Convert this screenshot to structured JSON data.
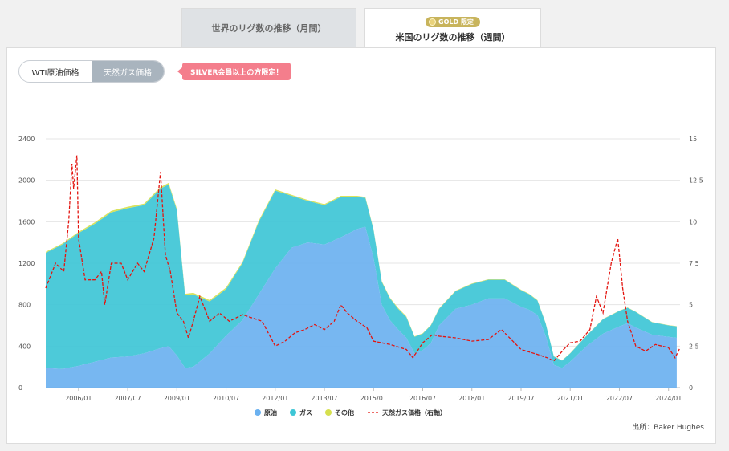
{
  "tabs": {
    "monthly": "世界のリグ数の推移（月間）",
    "weekly": "米国のリグ数の推移（週間）",
    "gold_badge": "GOLD 限定"
  },
  "toggle": {
    "wti": "WTI原油価格",
    "gas": "天然ガス価格"
  },
  "silver_note": "SILVER会員以上の方限定！",
  "source": "出所：Baker Hughes",
  "chart_data": {
    "type": "area",
    "x": [
      2005.0,
      2005.5,
      2006.0,
      2006.5,
      2007.0,
      2007.5,
      2008.0,
      2008.5,
      2008.75,
      2009.0,
      2009.25,
      2009.5,
      2010.0,
      2010.5,
      2011.0,
      2011.5,
      2012.0,
      2012.5,
      2013.0,
      2013.5,
      2014.0,
      2014.5,
      2014.75,
      2015.0,
      2015.25,
      2015.5,
      2015.75,
      2016.0,
      2016.25,
      2016.5,
      2016.75,
      2017.0,
      2017.5,
      2018.0,
      2018.5,
      2019.0,
      2019.5,
      2019.75,
      2020.0,
      2020.25,
      2020.5,
      2020.75,
      2021.0,
      2021.5,
      2022.0,
      2022.5,
      2022.75,
      2023.0,
      2023.5,
      2024.0,
      2024.25
    ],
    "series": [
      {
        "name": "原油",
        "color": "#6bb1f0",
        "values": [
          190,
          180,
          210,
          250,
          290,
          300,
          330,
          380,
          400,
          310,
          190,
          200,
          330,
          500,
          650,
          900,
          1150,
          1350,
          1400,
          1380,
          1450,
          1530,
          1550,
          1250,
          800,
          650,
          560,
          480,
          330,
          360,
          430,
          600,
          760,
          800,
          860,
          860,
          780,
          750,
          700,
          500,
          220,
          190,
          250,
          400,
          520,
          590,
          620,
          580,
          510,
          490,
          480
        ]
      },
      {
        "name": "ガス",
        "color": "#3ec6d6",
        "values": [
          1110,
          1200,
          1280,
          1330,
          1400,
          1430,
          1430,
          1540,
          1560,
          1400,
          700,
          700,
          500,
          450,
          550,
          700,
          750,
          500,
          400,
          380,
          390,
          310,
          280,
          270,
          220,
          210,
          200,
          200,
          160,
          160,
          170,
          160,
          170,
          200,
          180,
          180,
          160,
          150,
          140,
          120,
          80,
          70,
          80,
          100,
          140,
          150,
          150,
          150,
          120,
          110,
          110
        ]
      },
      {
        "name": "その他",
        "color": "#d6e04e",
        "values": [
          10,
          10,
          12,
          15,
          15,
          15,
          15,
          15,
          15,
          15,
          15,
          15,
          15,
          15,
          12,
          12,
          12,
          10,
          10,
          10,
          10,
          10,
          10,
          8,
          8,
          8,
          8,
          8,
          5,
          5,
          5,
          5,
          5,
          5,
          5,
          5,
          5,
          5,
          5,
          4,
          3,
          3,
          3,
          3,
          3,
          3,
          3,
          3,
          3,
          3,
          3
        ]
      }
    ],
    "gas_price": {
      "name": "天然ガス価格（右軸）",
      "color": "#e3140f",
      "x": [
        2005.0,
        2005.3,
        2005.55,
        2005.7,
        2005.8,
        2005.85,
        2005.95,
        2006.0,
        2006.2,
        2006.5,
        2006.7,
        2006.8,
        2007.0,
        2007.3,
        2007.5,
        2007.8,
        2008.0,
        2008.3,
        2008.5,
        2008.65,
        2008.8,
        2009.0,
        2009.2,
        2009.35,
        2009.5,
        2009.7,
        2009.9,
        2010.0,
        2010.3,
        2010.6,
        2011.0,
        2011.3,
        2011.6,
        2012.0,
        2012.3,
        2012.6,
        2012.9,
        2013.2,
        2013.5,
        2013.8,
        2014.0,
        2014.2,
        2014.5,
        2014.8,
        2015.0,
        2015.5,
        2016.0,
        2016.2,
        2016.5,
        2016.8,
        2017.0,
        2017.5,
        2018.0,
        2018.5,
        2018.9,
        2019.2,
        2019.5,
        2020.0,
        2020.3,
        2020.5,
        2020.8,
        2021.0,
        2021.3,
        2021.6,
        2021.8,
        2022.0,
        2022.25,
        2022.45,
        2022.6,
        2022.75,
        2023.0,
        2023.3,
        2023.6,
        2024.0,
        2024.2,
        2024.35
      ],
      "values": [
        6.0,
        7.5,
        7.0,
        10.0,
        13.5,
        12.0,
        14.0,
        9.0,
        6.5,
        6.5,
        7.0,
        5.0,
        7.5,
        7.5,
        6.5,
        7.5,
        7.0,
        9.0,
        13.0,
        8.0,
        7.0,
        4.5,
        4.0,
        3.0,
        4.0,
        5.5,
        4.5,
        4.0,
        4.5,
        4.0,
        4.4,
        4.2,
        4.0,
        2.5,
        2.8,
        3.3,
        3.5,
        3.8,
        3.5,
        4.0,
        5.0,
        4.5,
        4.0,
        3.6,
        2.8,
        2.6,
        2.3,
        1.8,
        2.7,
        3.2,
        3.1,
        3.0,
        2.8,
        2.9,
        3.5,
        2.9,
        2.3,
        2.0,
        1.8,
        1.6,
        2.3,
        2.7,
        2.8,
        3.5,
        5.5,
        4.5,
        7.5,
        9.0,
        6.0,
        4.0,
        2.5,
        2.2,
        2.6,
        2.4,
        1.8,
        2.4
      ]
    },
    "x_ticks": [
      {
        "x": 2006.0,
        "label": "2006/01"
      },
      {
        "x": 2007.5,
        "label": "2007/07"
      },
      {
        "x": 2009.0,
        "label": "2009/01"
      },
      {
        "x": 2010.5,
        "label": "2010/07"
      },
      {
        "x": 2012.0,
        "label": "2012/01"
      },
      {
        "x": 2013.5,
        "label": "2013/07"
      },
      {
        "x": 2015.0,
        "label": "2015/01"
      },
      {
        "x": 2016.5,
        "label": "2016/07"
      },
      {
        "x": 2018.0,
        "label": "2018/01"
      },
      {
        "x": 2019.5,
        "label": "2019/07"
      },
      {
        "x": 2021.0,
        "label": "2021/01"
      },
      {
        "x": 2022.5,
        "label": "2022/07"
      },
      {
        "x": 2024.0,
        "label": "2024/01"
      }
    ],
    "y_left": {
      "min": 0,
      "max": 2400,
      "ticks": [
        "0",
        "400",
        "800",
        "1200",
        "1600",
        "2000",
        "2400"
      ]
    },
    "y_right": {
      "min": 0,
      "max": 15,
      "ticks": [
        "0",
        "2.5",
        "5",
        "7.5",
        "10",
        "12.5",
        "15"
      ]
    },
    "xlim": [
      2005.0,
      2024.35
    ],
    "legend": "bottom",
    "grid": true
  }
}
